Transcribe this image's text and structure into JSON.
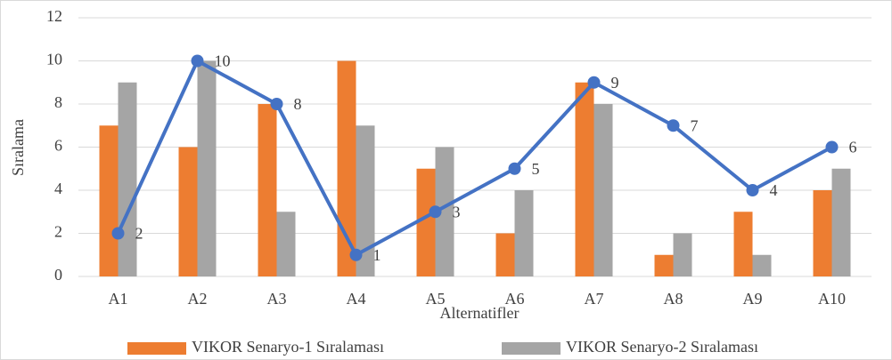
{
  "chart_data": {
    "type": "bar",
    "x_label": "Alternatifler",
    "y_label": "Sıralama",
    "categories": [
      "A1",
      "A2",
      "A3",
      "A4",
      "A5",
      "A6",
      "A7",
      "A8",
      "A9",
      "A10"
    ],
    "series": [
      {
        "name": "VIKOR Senaryo-1 Sıralaması",
        "color": "#ed7d31",
        "values": [
          7,
          6,
          8,
          10,
          5,
          2,
          9,
          1,
          3,
          4
        ]
      },
      {
        "name": "VIKOR Senaryo-2 Sıralaması",
        "color": "#a5a5a5",
        "values": [
          9,
          10,
          3,
          7,
          6,
          4,
          8,
          2,
          1,
          5
        ]
      },
      {
        "type": "line",
        "color": "#4472c4",
        "values": [
          2,
          10,
          8,
          1,
          3,
          5,
          9,
          7,
          4,
          6
        ]
      }
    ],
    "ylim": [
      0,
      12
    ],
    "yticks": [
      0,
      2,
      4,
      6,
      8,
      10,
      12
    ],
    "grid": true,
    "legend": "bottom"
  }
}
